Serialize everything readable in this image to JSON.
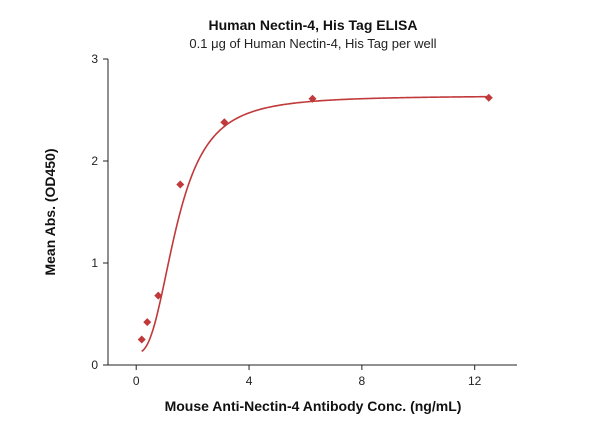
{
  "chart_data": {
    "type": "scatter",
    "title": "Human Nectin-4, His Tag ELISA",
    "subtitle": "0.1 μg of Human Nectin-4, His Tag per well",
    "xlabel": "Mouse Anti-Nectin-4 Antibody Conc. (ng/mL)",
    "ylabel": "Mean Abs. (OD450)",
    "xlim": [
      -1,
      13.5
    ],
    "ylim": [
      0,
      3
    ],
    "xticks": [
      0,
      4,
      8,
      12
    ],
    "yticks": [
      0,
      1,
      2,
      3
    ],
    "grid": false,
    "legend": "none",
    "color": "#c0393b",
    "series": [
      {
        "x": [
          0.195,
          0.391,
          0.781,
          1.563,
          3.125,
          6.25,
          12.5
        ],
        "y": [
          0.25,
          0.42,
          0.68,
          1.77,
          2.38,
          2.61,
          2.62
        ],
        "marker": "diamond",
        "fit": "four-parameter-logistic"
      }
    ]
  }
}
